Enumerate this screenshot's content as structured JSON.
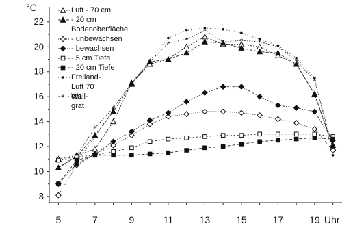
{
  "chart_data": {
    "type": "line",
    "x": [
      5,
      6,
      7,
      8,
      9,
      10,
      11,
      12,
      13,
      14,
      15,
      16,
      17,
      18,
      19,
      20
    ],
    "xlim": [
      4.5,
      20.5
    ],
    "ylim": [
      7.5,
      23.2
    ],
    "yunit": "°C",
    "xunit": "Uhr",
    "xticks": [
      "5",
      "7",
      "9",
      "11",
      "13",
      "15",
      "17",
      "19"
    ],
    "yticks": [
      "8",
      "10",
      "12",
      "14",
      "16",
      "18",
      "20",
      "22"
    ],
    "legend_heading": "Bodenoberfläche",
    "series": [
      {
        "name": "Luft - 70 cm",
        "marker": "open-triangle",
        "values": [
          11.0,
          11.3,
          11.8,
          14.0,
          17.1,
          18.6,
          19.0,
          20.0,
          20.8,
          20.2,
          20.2,
          20.0,
          19.3,
          18.6,
          16.2,
          11.9
        ]
      },
      {
        "name": "- 20 cm",
        "marker": "filled-triangle",
        "values": [
          10.3,
          11.2,
          12.9,
          14.8,
          17.0,
          18.8,
          19.0,
          19.5,
          20.4,
          20.3,
          19.9,
          19.6,
          19.5,
          18.6,
          16.2,
          12.1
        ]
      },
      {
        "name": "- unbewachsen",
        "marker": "open-diamond",
        "values": [
          8.1,
          10.5,
          11.4,
          12.1,
          12.9,
          13.8,
          14.4,
          14.6,
          14.8,
          14.8,
          14.7,
          14.5,
          14.2,
          13.9,
          13.4,
          11.7
        ]
      },
      {
        "name": "- bewachsen",
        "marker": "filled-diamond",
        "values": [
          9.0,
          10.6,
          11.4,
          12.4,
          13.2,
          14.1,
          14.7,
          15.6,
          16.3,
          16.8,
          16.8,
          16.0,
          15.3,
          15.1,
          14.8,
          12.5
        ]
      },
      {
        "name": "- 5 cm Tiefe",
        "marker": "open-square",
        "values": [
          10.9,
          11.2,
          11.3,
          11.6,
          11.9,
          12.4,
          12.6,
          12.7,
          12.8,
          12.9,
          12.9,
          13.0,
          13.0,
          13.0,
          13.0,
          12.8
        ]
      },
      {
        "name": "- 20 cm Tiefe",
        "marker": "filled-square",
        "values": [
          9.0,
          10.9,
          11.3,
          11.3,
          11.3,
          11.4,
          11.5,
          11.7,
          11.9,
          12.0,
          12.2,
          12.4,
          12.5,
          12.6,
          12.7,
          12.6
        ]
      },
      {
        "name": "Freiland-Luft 70 cm",
        "marker": "dot",
        "values": [
          null,
          10.8,
          12.8,
          15.0,
          17.1,
          18.9,
          20.7,
          21.3,
          21.5,
          21.4,
          21.1,
          20.6,
          20.1,
          19.1,
          17.5,
          11.3
        ]
      },
      {
        "name": "Wall-grat",
        "marker": "star",
        "values": [
          10.3,
          11.3,
          13.5,
          15.1,
          17.1,
          18.8,
          20.3,
          20.6,
          21.3,
          20.4,
          20.5,
          20.4,
          20.0,
          18.9,
          17.3,
          11.9
        ]
      }
    ],
    "legend_placement": "top-left",
    "grid": false
  }
}
